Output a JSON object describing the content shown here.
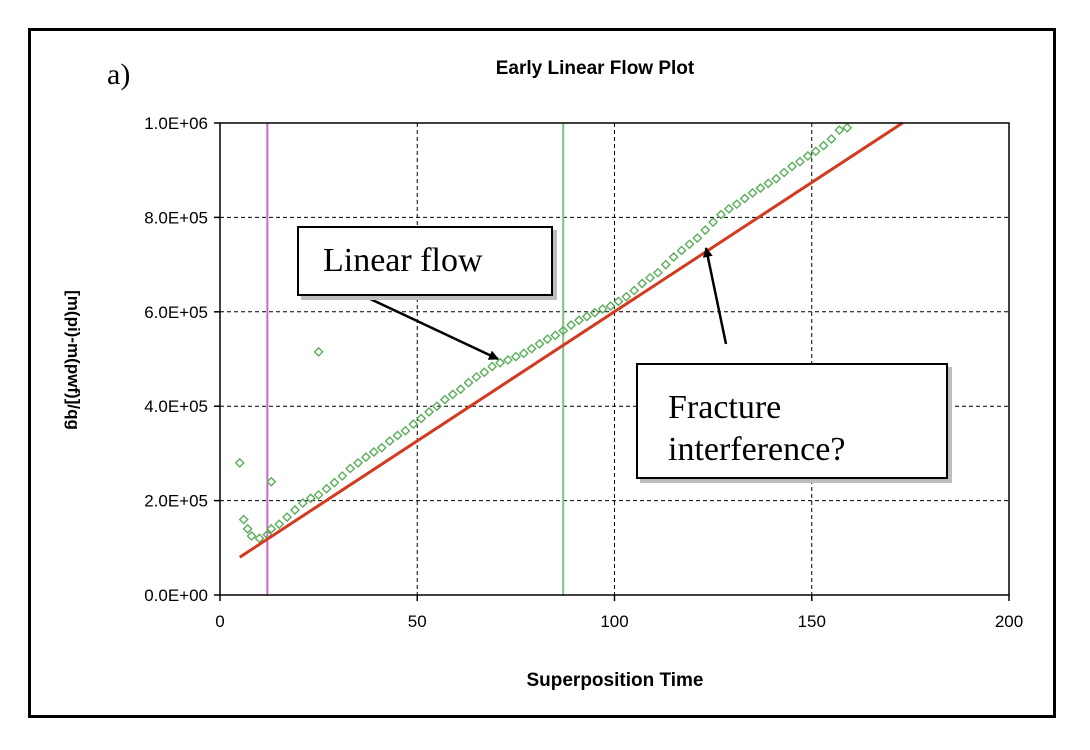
{
  "figure": {
    "panel_label": "a)",
    "callouts": {
      "linear_flow": "Linear flow",
      "fracture_line1": "Fracture",
      "fracture_line2": "interference?"
    }
  },
  "chart_data": {
    "type": "scatter",
    "title": "Early Linear Flow Plot",
    "xlabel": "Superposition Time",
    "ylabel": "[m(pi)-m(pwf)]/qg",
    "xlim": [
      0,
      200
    ],
    "ylim": [
      0,
      1000000
    ],
    "xticks": [
      0,
      50,
      100,
      150,
      200
    ],
    "xtick_labels": [
      "0",
      "50",
      "100",
      "150",
      "200"
    ],
    "yticks": [
      0,
      200000,
      400000,
      600000,
      800000,
      1000000
    ],
    "ytick_labels": [
      "0.0E+00",
      "2.0E+05",
      "4.0E+05",
      "6.0E+05",
      "8.0E+05",
      "1.0E+06"
    ],
    "grid": true,
    "series": [
      {
        "marker": "diamond-open",
        "color": "#5aae5a",
        "x": [
          5,
          6,
          7,
          8,
          10,
          12,
          13,
          15,
          17,
          19,
          21,
          23,
          25,
          27,
          29,
          31,
          33,
          35,
          37,
          39,
          41,
          43,
          45,
          47,
          49,
          51,
          53,
          55,
          57,
          59,
          61,
          63,
          65,
          67,
          69,
          71,
          73,
          75,
          77,
          79,
          81,
          83,
          85,
          87,
          89,
          91,
          93,
          95,
          97,
          99,
          101,
          103,
          105,
          107,
          109,
          111,
          113,
          115,
          117,
          119,
          121,
          123,
          125,
          127,
          129,
          131,
          133,
          135,
          137,
          139,
          141,
          143,
          145,
          147,
          149,
          151,
          153,
          155,
          157,
          159,
          25,
          13
        ],
        "y": [
          280000,
          160000,
          140000,
          125000,
          120000,
          128000,
          140000,
          150000,
          165000,
          180000,
          195000,
          205000,
          212000,
          225000,
          238000,
          252000,
          268000,
          280000,
          292000,
          303000,
          312000,
          326000,
          338000,
          348000,
          362000,
          374000,
          388000,
          400000,
          414000,
          425000,
          436000,
          450000,
          462000,
          472000,
          484000,
          492000,
          498000,
          505000,
          512000,
          522000,
          532000,
          542000,
          550000,
          560000,
          572000,
          582000,
          590000,
          598000,
          606000,
          612000,
          622000,
          632000,
          645000,
          660000,
          672000,
          683000,
          700000,
          716000,
          730000,
          743000,
          756000,
          773000,
          790000,
          806000,
          818000,
          828000,
          840000,
          852000,
          862000,
          872000,
          882000,
          895000,
          908000,
          918000,
          930000,
          940000,
          952000,
          966000,
          985000,
          990000,
          515000,
          240000
        ]
      },
      {
        "line": true,
        "color": "#d33a1f",
        "x": [
          5,
          173
        ],
        "y": [
          80000,
          1000000
        ]
      }
    ],
    "vertical_lines": [
      {
        "x": 12,
        "color": "#cc66cc"
      },
      {
        "x": 87,
        "color": "#7cc47c"
      }
    ]
  }
}
